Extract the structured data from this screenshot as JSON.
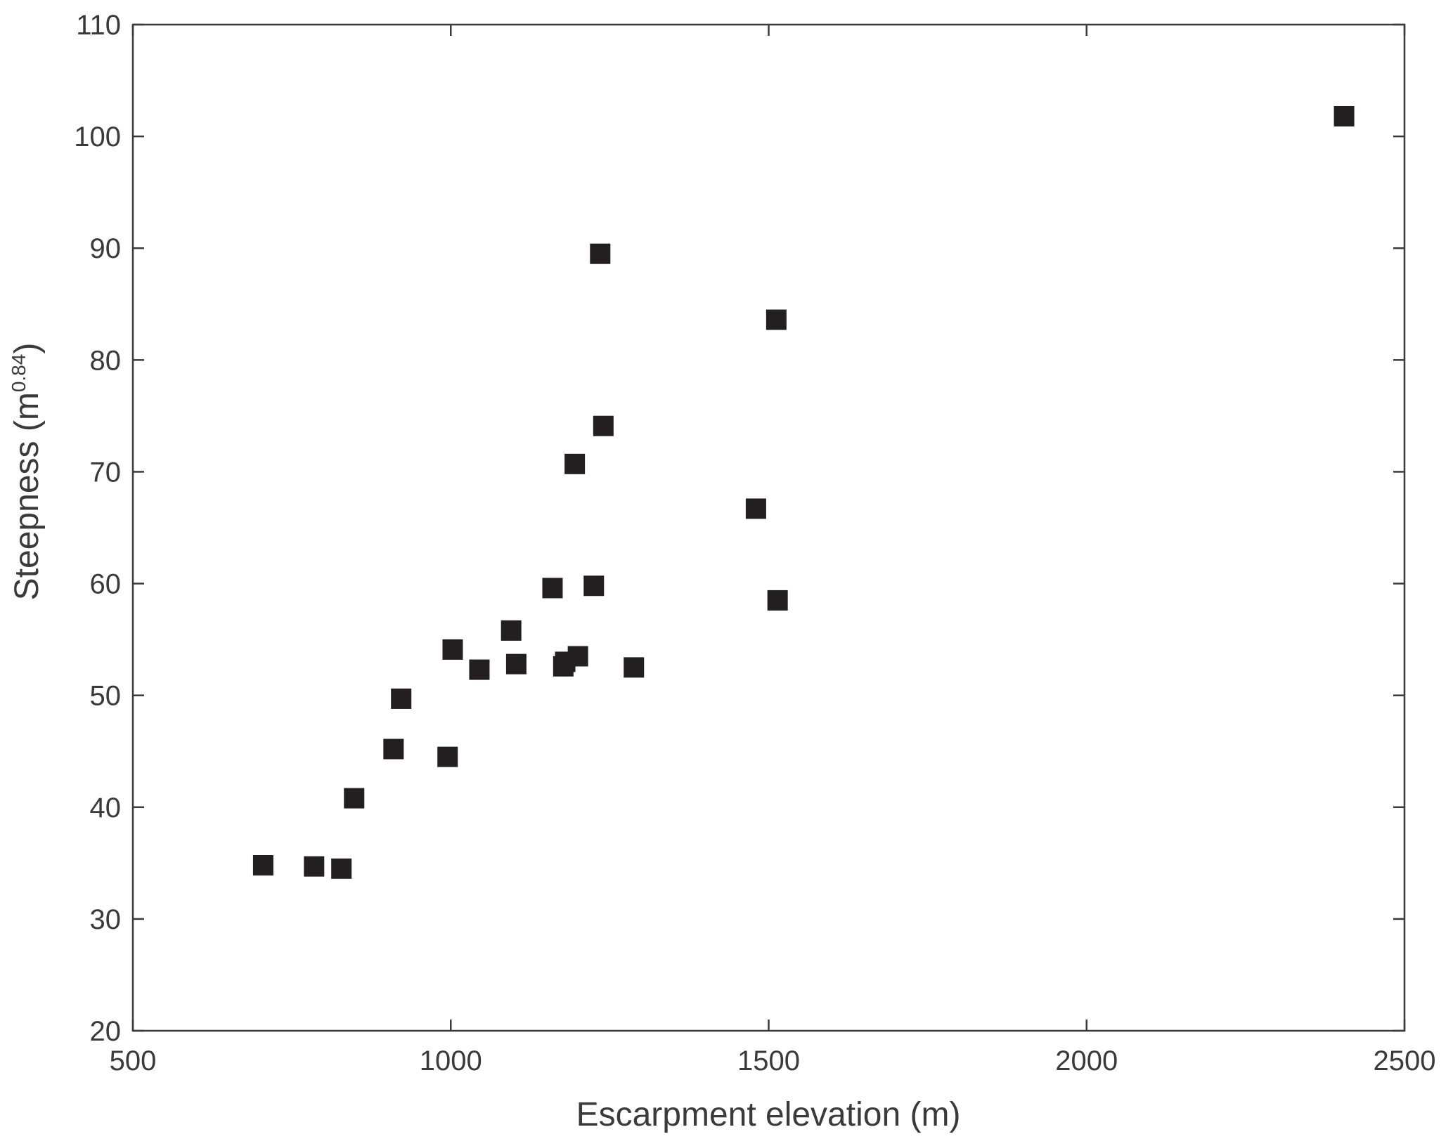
{
  "chart_data": {
    "type": "scatter",
    "title": "",
    "xlabel": "Escarpment elevation (m)",
    "ylabel": {
      "base": "Steepness (m",
      "sup": "0.84",
      "close": ")"
    },
    "xlim": [
      500,
      2500
    ],
    "ylim": [
      20,
      110
    ],
    "xticks": [
      500,
      1000,
      1500,
      2000,
      2500
    ],
    "yticks": [
      20,
      30,
      40,
      50,
      60,
      70,
      80,
      90,
      100,
      110
    ],
    "grid": false,
    "legend": "none",
    "marker": "square",
    "marker_color": "#231f20",
    "points": [
      {
        "x": 705,
        "y": 34.8
      },
      {
        "x": 785,
        "y": 34.7
      },
      {
        "x": 828,
        "y": 34.5
      },
      {
        "x": 848,
        "y": 40.8
      },
      {
        "x": 910,
        "y": 45.2
      },
      {
        "x": 922,
        "y": 49.7
      },
      {
        "x": 995,
        "y": 44.5
      },
      {
        "x": 1003,
        "y": 54.1
      },
      {
        "x": 1045,
        "y": 52.3
      },
      {
        "x": 1095,
        "y": 55.8
      },
      {
        "x": 1103,
        "y": 52.8
      },
      {
        "x": 1160,
        "y": 59.6
      },
      {
        "x": 1177,
        "y": 52.6
      },
      {
        "x": 1180,
        "y": 53.0
      },
      {
        "x": 1195,
        "y": 70.7
      },
      {
        "x": 1200,
        "y": 53.5
      },
      {
        "x": 1225,
        "y": 59.8
      },
      {
        "x": 1235,
        "y": 89.5
      },
      {
        "x": 1240,
        "y": 74.1
      },
      {
        "x": 1288,
        "y": 52.5
      },
      {
        "x": 1480,
        "y": 66.7
      },
      {
        "x": 1512,
        "y": 83.6
      },
      {
        "x": 1514,
        "y": 58.5
      },
      {
        "x": 2405,
        "y": 101.8
      }
    ]
  }
}
